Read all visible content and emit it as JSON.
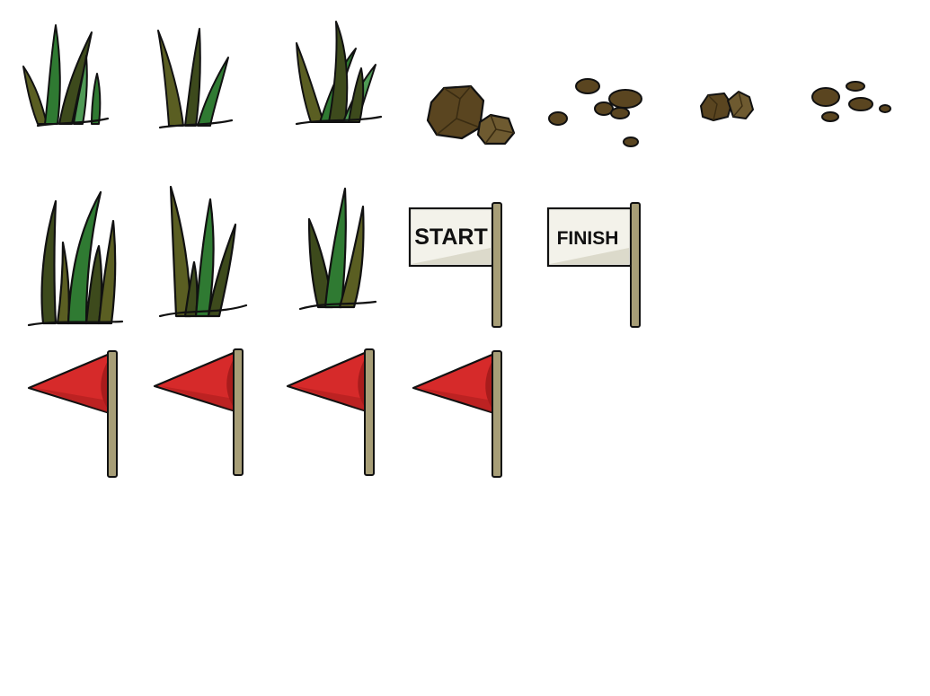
{
  "sprite_sheet": {
    "background_color": "#ffffff",
    "colors": {
      "outline": "#111111",
      "grass_dark": "#3d4a1c",
      "grass_olive": "#5a5e22",
      "grass_green": "#2f7a32",
      "grass_light": "#4f9a55",
      "rock_dark": "#3a2c12",
      "rock_mid": "#5a4520",
      "rock_light": "#6e5a30",
      "flag_red": "#d62a2a",
      "flag_red_dark": "#a81c1c",
      "pole": "#a79e77",
      "pole_dark": "#7c7452",
      "sign_face": "#f3f2ea",
      "sign_shade": "#dcdacb"
    },
    "grass_sprites": [
      {
        "name": "grass-tuft-1",
        "icon": "grass-tuft-icon"
      },
      {
        "name": "grass-tuft-2",
        "icon": "grass-tuft-icon"
      },
      {
        "name": "grass-tuft-3",
        "icon": "grass-tuft-icon"
      },
      {
        "name": "grass-tall-1",
        "icon": "tall-grass-icon"
      },
      {
        "name": "grass-tall-2",
        "icon": "tall-grass-icon"
      },
      {
        "name": "grass-tall-3",
        "icon": "tall-grass-icon"
      }
    ],
    "rock_sprites": [
      {
        "name": "rock-pair-large",
        "icon": "rocks-icon"
      },
      {
        "name": "pebble-scatter",
        "icon": "pebbles-icon"
      },
      {
        "name": "rock-pair-small",
        "icon": "rocks-icon"
      },
      {
        "name": "pebble-cluster",
        "icon": "pebbles-icon"
      }
    ],
    "signs": {
      "start_label": "START",
      "finish_label": "FINISH"
    },
    "red_flags": [
      {
        "name": "red-flag-1",
        "icon": "red-flag-icon"
      },
      {
        "name": "red-flag-2",
        "icon": "red-flag-icon"
      },
      {
        "name": "red-flag-3",
        "icon": "red-flag-icon"
      },
      {
        "name": "red-flag-4",
        "icon": "red-flag-icon"
      }
    ]
  }
}
